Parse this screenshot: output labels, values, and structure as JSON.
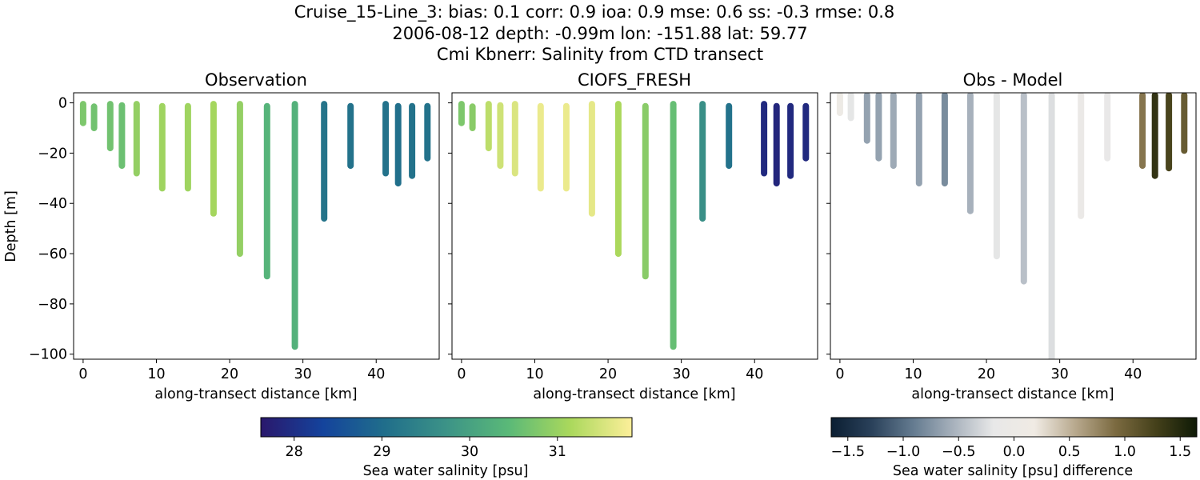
{
  "title_lines": [
    "Cruise_15-Line_3: bias: 0.1  corr: 0.9  ioa: 0.9  mse: 0.6  ss: -0.3  rmse: 0.8",
    "2006-08-12 depth: -0.99m lon: -151.88 lat: 59.77",
    "Cmi Kbnerr: Salinity from CTD transect"
  ],
  "colors": {
    "haline": [
      "#2a186c",
      "#14439c",
      "#206e8b",
      "#3c9387",
      "#5ab978",
      "#aad85c",
      "#fdef9a"
    ],
    "diff": [
      "#0b1e32",
      "#2a415a",
      "#637a8f",
      "#a7b1bc",
      "#e8e8e8",
      "#f0ebe4",
      "#b8a98e",
      "#7b6a40",
      "#44401a",
      "#0e1a06"
    ]
  },
  "chart_data": [
    {
      "type": "scatter",
      "title": "Observation",
      "xlabel": "along-transect distance [km]",
      "ylabel": "Depth [m]",
      "xlim": [
        -1.3,
        48.6
      ],
      "ylim": [
        -102,
        4
      ],
      "xticks": [
        "0",
        "10",
        "20",
        "30",
        "40"
      ],
      "yticks": [
        "0",
        "−20",
        "−40",
        "−60",
        "−80",
        "−100"
      ],
      "colormap": "haline",
      "color_range": [
        27.62,
        31.85
      ],
      "x": [
        0,
        1.5,
        3.7,
        5.3,
        7.3,
        10.8,
        14.3,
        17.8,
        21.4,
        25.1,
        28.9,
        32.9,
        36.5,
        41.3,
        43.0,
        44.9,
        47.0
      ],
      "depth_top": [
        -0.5,
        -1.5,
        -0.5,
        -1.0,
        -0.5,
        -1.3,
        -1.3,
        -0.5,
        -0.5,
        -1.3,
        -0.5,
        -0.5,
        -1.3,
        -0.5,
        -1.3,
        -1.3,
        -1.3
      ],
      "depth_bottom": [
        -8,
        -10,
        -18,
        -25,
        -28,
        -34,
        -34,
        -44,
        -60,
        -69,
        -97,
        -46,
        -25,
        -28,
        -32,
        -29,
        -22
      ],
      "salinity": [
        30.75,
        30.65,
        30.65,
        30.6,
        30.95,
        31.05,
        31.05,
        31.1,
        30.95,
        30.35,
        30.3,
        29.15,
        29.1,
        29.1,
        29.05,
        29.1,
        29.1
      ]
    },
    {
      "type": "scatter",
      "title": "CIOFS_FRESH",
      "xlabel": "along-transect distance [km]",
      "xlim": [
        -1.3,
        48.6
      ],
      "ylim": [
        -102,
        4
      ],
      "xticks": [
        "0",
        "10",
        "20",
        "30",
        "40"
      ],
      "colormap": "haline",
      "color_range": [
        27.62,
        31.85
      ],
      "x": [
        0,
        1.5,
        3.7,
        5.3,
        7.3,
        10.8,
        14.3,
        17.8,
        21.4,
        25.1,
        28.9,
        32.9,
        36.5,
        41.3,
        43.0,
        44.9,
        47.0
      ],
      "depth_top": [
        -0.5,
        -1.5,
        -0.5,
        -1.0,
        -0.5,
        -1.3,
        -1.3,
        -0.5,
        -0.5,
        -1.3,
        -0.5,
        -0.5,
        -1.3,
        -0.5,
        -1.3,
        -1.3,
        -1.3
      ],
      "depth_bottom": [
        -8,
        -10,
        -18,
        -25,
        -28,
        -34,
        -34,
        -44,
        -60,
        -69,
        -97,
        -46,
        -25,
        -28,
        -32,
        -29,
        -22
      ],
      "salinity": [
        30.75,
        30.85,
        31.3,
        31.45,
        31.55,
        31.7,
        31.7,
        31.65,
        31.15,
        30.85,
        30.55,
        29.65,
        29.1,
        27.9,
        27.85,
        27.9,
        27.9
      ]
    },
    {
      "type": "scatter",
      "title": "Obs - Model",
      "xlabel": "along-transect distance [km]",
      "xlim": [
        -1.3,
        48.6
      ],
      "ylim": [
        -102,
        4
      ],
      "xticks": [
        "0",
        "10",
        "20",
        "30",
        "40"
      ],
      "colormap": "diff",
      "color_range": [
        -1.65,
        1.65
      ],
      "x": [
        0,
        1.5,
        3.7,
        5.3,
        7.3,
        10.8,
        14.3,
        17.8,
        21.4,
        25.1,
        28.9,
        32.9,
        36.5,
        41.3,
        43.0,
        44.9,
        47.0
      ],
      "depth_top": [
        3,
        3,
        3,
        3,
        3,
        3,
        3,
        3,
        3,
        3,
        3,
        3,
        3,
        3,
        3,
        3,
        3
      ],
      "depth_bottom": [
        -4,
        -6,
        -15,
        -22,
        -25,
        -32,
        -32,
        -43,
        -61,
        -71,
        -102,
        -45,
        -22,
        -25,
        -29,
        -26,
        -19
      ],
      "salinity": [
        0.05,
        -0.2,
        -0.65,
        -0.65,
        -0.6,
        -0.65,
        -0.8,
        -0.55,
        -0.2,
        -0.45,
        -0.25,
        -0.05,
        -0.15,
        0.85,
        1.4,
        1.25,
        1.05
      ]
    }
  ],
  "colorbars": [
    {
      "label": "Sea water salinity [psu]",
      "colormap": "haline",
      "range": [
        27.62,
        31.85
      ],
      "ticks": [
        28,
        29,
        30,
        31
      ],
      "tick_labels": [
        "28",
        "29",
        "30",
        "31"
      ]
    },
    {
      "label": "Sea water salinity [psu] difference",
      "colormap": "diff",
      "range": [
        -1.65,
        1.65
      ],
      "ticks": [
        -1.5,
        -1.0,
        -0.5,
        0.0,
        0.5,
        1.0,
        1.5
      ],
      "tick_labels": [
        "−1.5",
        "−1.0",
        "−0.5",
        "0.0",
        "0.5",
        "1.0",
        "1.5"
      ]
    }
  ]
}
